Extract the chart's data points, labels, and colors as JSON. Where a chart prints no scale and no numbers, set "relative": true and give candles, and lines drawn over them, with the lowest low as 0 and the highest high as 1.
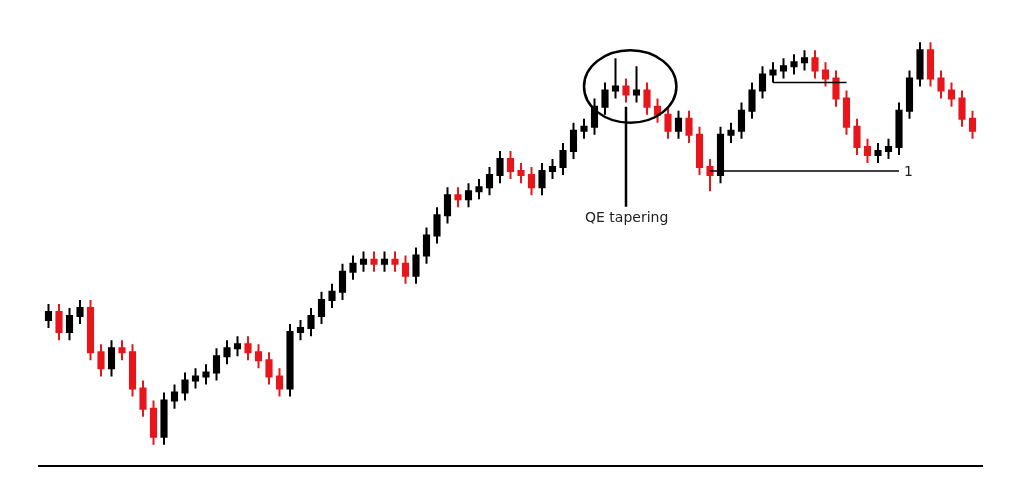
{
  "chart_data": {
    "type": "candlestick",
    "relative": true,
    "categories": [
      null,
      null,
      null,
      null,
      null,
      null,
      null,
      null,
      null,
      null,
      null,
      null,
      null,
      null,
      null,
      null,
      null,
      null,
      null,
      null,
      null,
      null,
      null,
      null,
      null,
      null,
      null,
      null,
      null,
      null,
      null,
      null,
      null,
      null,
      null,
      null,
      null,
      null,
      null,
      null,
      null,
      null,
      null,
      null,
      null,
      null,
      null,
      null,
      null,
      null,
      null,
      null,
      null,
      null,
      null,
      null,
      null,
      null,
      null,
      null,
      null,
      null,
      null,
      null,
      null,
      null,
      null,
      null,
      null,
      null,
      null,
      null,
      null,
      null,
      null,
      null,
      null,
      null,
      null,
      null,
      null,
      null,
      null,
      null,
      null,
      null,
      null,
      null,
      null
    ],
    "ohlc": [
      [
        0.31,
        0.35,
        0.29,
        0.33
      ],
      [
        0.33,
        0.35,
        0.26,
        0.28
      ],
      [
        0.28,
        0.34,
        0.26,
        0.32
      ],
      [
        0.32,
        0.36,
        0.3,
        0.34
      ],
      [
        0.34,
        0.36,
        0.21,
        0.23
      ],
      [
        0.23,
        0.25,
        0.17,
        0.19
      ],
      [
        0.19,
        0.26,
        0.17,
        0.24
      ],
      [
        0.24,
        0.26,
        0.21,
        0.23
      ],
      [
        0.23,
        0.25,
        0.12,
        0.14
      ],
      [
        0.14,
        0.16,
        0.07,
        0.09
      ],
      [
        0.09,
        0.11,
        0.0,
        0.02
      ],
      [
        0.02,
        0.13,
        0.0,
        0.11
      ],
      [
        0.11,
        0.15,
        0.09,
        0.13
      ],
      [
        0.13,
        0.18,
        0.11,
        0.16
      ],
      [
        0.16,
        0.19,
        0.14,
        0.17
      ],
      [
        0.17,
        0.2,
        0.15,
        0.18
      ],
      [
        0.18,
        0.24,
        0.16,
        0.22
      ],
      [
        0.22,
        0.26,
        0.2,
        0.24
      ],
      [
        0.24,
        0.27,
        0.22,
        0.25
      ],
      [
        0.25,
        0.27,
        0.21,
        0.23
      ],
      [
        0.23,
        0.25,
        0.19,
        0.21
      ],
      [
        0.21,
        0.23,
        0.15,
        0.17
      ],
      [
        0.17,
        0.19,
        0.12,
        0.14
      ],
      [
        0.14,
        0.3,
        0.12,
        0.28
      ],
      [
        0.28,
        0.31,
        0.26,
        0.29
      ],
      [
        0.29,
        0.34,
        0.27,
        0.32
      ],
      [
        0.32,
        0.38,
        0.3,
        0.36
      ],
      [
        0.36,
        0.4,
        0.34,
        0.38
      ],
      [
        0.38,
        0.45,
        0.36,
        0.43
      ],
      [
        0.43,
        0.47,
        0.41,
        0.45
      ],
      [
        0.45,
        0.48,
        0.43,
        0.46
      ],
      [
        0.46,
        0.48,
        0.43,
        0.45
      ],
      [
        0.45,
        0.48,
        0.43,
        0.46
      ],
      [
        0.46,
        0.48,
        0.43,
        0.45
      ],
      [
        0.45,
        0.47,
        0.4,
        0.42
      ],
      [
        0.42,
        0.49,
        0.4,
        0.47
      ],
      [
        0.47,
        0.54,
        0.45,
        0.52
      ],
      [
        0.52,
        0.59,
        0.5,
        0.57
      ],
      [
        0.57,
        0.64,
        0.55,
        0.62
      ],
      [
        0.62,
        0.64,
        0.59,
        0.61
      ],
      [
        0.61,
        0.65,
        0.59,
        0.63
      ],
      [
        0.63,
        0.66,
        0.61,
        0.64
      ],
      [
        0.64,
        0.69,
        0.62,
        0.67
      ],
      [
        0.67,
        0.73,
        0.65,
        0.71
      ],
      [
        0.71,
        0.73,
        0.66,
        0.68
      ],
      [
        0.68,
        0.7,
        0.65,
        0.67
      ],
      [
        0.67,
        0.69,
        0.62,
        0.64
      ],
      [
        0.64,
        0.7,
        0.62,
        0.68
      ],
      [
        0.68,
        0.71,
        0.66,
        0.69
      ],
      [
        0.69,
        0.75,
        0.67,
        0.73
      ],
      [
        0.73,
        0.8,
        0.71,
        0.78
      ],
      [
        0.78,
        0.81,
        0.76,
        0.79
      ],
      [
        0.79,
        0.86,
        0.77,
        0.84
      ],
      [
        0.84,
        0.9,
        0.82,
        0.88
      ],
      [
        0.88,
        0.96,
        0.86,
        0.89
      ],
      [
        0.89,
        0.91,
        0.85,
        0.87
      ],
      [
        0.87,
        0.94,
        0.85,
        0.88
      ],
      [
        0.88,
        0.9,
        0.82,
        0.84
      ],
      [
        0.84,
        0.86,
        0.8,
        0.82
      ],
      [
        0.82,
        0.84,
        0.76,
        0.78
      ],
      [
        0.78,
        0.83,
        0.76,
        0.81
      ],
      [
        0.81,
        0.83,
        0.75,
        0.77
      ],
      [
        0.77,
        0.79,
        0.67,
        0.69
      ],
      [
        0.69,
        0.71,
        0.63,
        0.67
      ],
      [
        0.67,
        0.79,
        0.65,
        0.77
      ],
      [
        0.77,
        0.8,
        0.75,
        0.78
      ],
      [
        0.78,
        0.85,
        0.76,
        0.83
      ],
      [
        0.83,
        0.9,
        0.81,
        0.88
      ],
      [
        0.88,
        0.94,
        0.86,
        0.92
      ],
      [
        0.92,
        0.95,
        0.9,
        0.93
      ],
      [
        0.93,
        0.96,
        0.91,
        0.94
      ],
      [
        0.94,
        0.97,
        0.92,
        0.95
      ],
      [
        0.95,
        0.98,
        0.93,
        0.96
      ],
      [
        0.96,
        0.98,
        0.91,
        0.93
      ],
      [
        0.93,
        0.95,
        0.89,
        0.91
      ],
      [
        0.91,
        0.93,
        0.84,
        0.86
      ],
      [
        0.86,
        0.88,
        0.77,
        0.79
      ],
      [
        0.79,
        0.81,
        0.72,
        0.74
      ],
      [
        0.74,
        0.76,
        0.7,
        0.72
      ],
      [
        0.72,
        0.75,
        0.7,
        0.73
      ],
      [
        0.73,
        0.76,
        0.71,
        0.74
      ],
      [
        0.74,
        0.85,
        0.72,
        0.83
      ],
      [
        0.83,
        0.93,
        0.81,
        0.91
      ],
      [
        0.91,
        1.0,
        0.89,
        0.98
      ],
      [
        0.98,
        1.0,
        0.89,
        0.91
      ],
      [
        0.91,
        0.93,
        0.86,
        0.88
      ],
      [
        0.88,
        0.9,
        0.84,
        0.86
      ],
      [
        0.86,
        0.88,
        0.79,
        0.81
      ],
      [
        0.81,
        0.83,
        0.76,
        0.78
      ]
    ],
    "colors": [
      "#000000",
      "#e8161b",
      "#000000",
      "#000000",
      "#e8161b",
      "#e8161b",
      "#000000",
      "#e8161b",
      "#e8161b",
      "#e8161b",
      "#e8161b",
      "#000000",
      "#000000",
      "#000000",
      "#000000",
      "#000000",
      "#000000",
      "#000000",
      "#000000",
      "#e8161b",
      "#e8161b",
      "#e8161b",
      "#e8161b",
      "#000000",
      "#000000",
      "#000000",
      "#000000",
      "#000000",
      "#000000",
      "#000000",
      "#000000",
      "#e8161b",
      "#000000",
      "#e8161b",
      "#e8161b",
      "#000000",
      "#000000",
      "#000000",
      "#000000",
      "#e8161b",
      "#000000",
      "#000000",
      "#000000",
      "#000000",
      "#e8161b",
      "#e8161b",
      "#e8161b",
      "#000000",
      "#000000",
      "#000000",
      "#000000",
      "#000000",
      "#000000",
      "#000000",
      "#000000",
      "#e8161b",
      "#000000",
      "#e8161b",
      "#e8161b",
      "#e8161b",
      "#000000",
      "#e8161b",
      "#e8161b",
      "#e8161b",
      "#000000",
      "#000000",
      "#000000",
      "#000000",
      "#000000",
      "#000000",
      "#000000",
      "#000000",
      "#000000",
      "#e8161b",
      "#e8161b",
      "#e8161b",
      "#e8161b",
      "#e8161b",
      "#e8161b",
      "#000000",
      "#000000",
      "#000000",
      "#000000",
      "#000000",
      "#e8161b",
      "#e8161b",
      "#e8161b",
      "#e8161b",
      "#e8161b"
    ],
    "series": [
      {
        "type": "line",
        "values": [
          null,
          null,
          null,
          null,
          null,
          null,
          null,
          null,
          null,
          null,
          null,
          null,
          null,
          null,
          null,
          null,
          null,
          null,
          null,
          null,
          null,
          null,
          null,
          null,
          null,
          null,
          null,
          null,
          null,
          null,
          null,
          null,
          null,
          null,
          null,
          null,
          null,
          null,
          null,
          null,
          null,
          null,
          null,
          null,
          null,
          null,
          null,
          null,
          null,
          null,
          null,
          null,
          null,
          null,
          null,
          null,
          null,
          null,
          null,
          null,
          null,
          null,
          null,
          0.68,
          0.68,
          0.68,
          0.68,
          0.68,
          0.68,
          0.68,
          0.68,
          0.68,
          0.68,
          0.68,
          0.68,
          0.68,
          0.68,
          0.68,
          0.68,
          0.68,
          0.68,
          0.68,
          null,
          null,
          null,
          null,
          null,
          null,
          null
        ],
        "color": "#000000"
      },
      {
        "type": "line",
        "values": [
          null,
          null,
          null,
          null,
          null,
          null,
          null,
          null,
          null,
          null,
          null,
          null,
          null,
          null,
          null,
          null,
          null,
          null,
          null,
          null,
          null,
          null,
          null,
          null,
          null,
          null,
          null,
          null,
          null,
          null,
          null,
          null,
          null,
          null,
          null,
          null,
          null,
          null,
          null,
          null,
          null,
          null,
          null,
          null,
          null,
          null,
          null,
          null,
          null,
          null,
          null,
          null,
          null,
          null,
          null,
          null,
          null,
          null,
          null,
          null,
          null,
          null,
          null,
          null,
          null,
          null,
          null,
          null,
          null,
          0.9,
          0.9,
          0.9,
          0.9,
          0.9,
          0.9,
          0.9,
          0.9,
          null,
          null,
          null,
          null,
          null,
          null,
          null,
          null,
          null,
          null,
          null,
          null
        ],
        "color": "#000000"
      }
    ],
    "annotations": [
      "QE tapering",
      "1"
    ]
  }
}
